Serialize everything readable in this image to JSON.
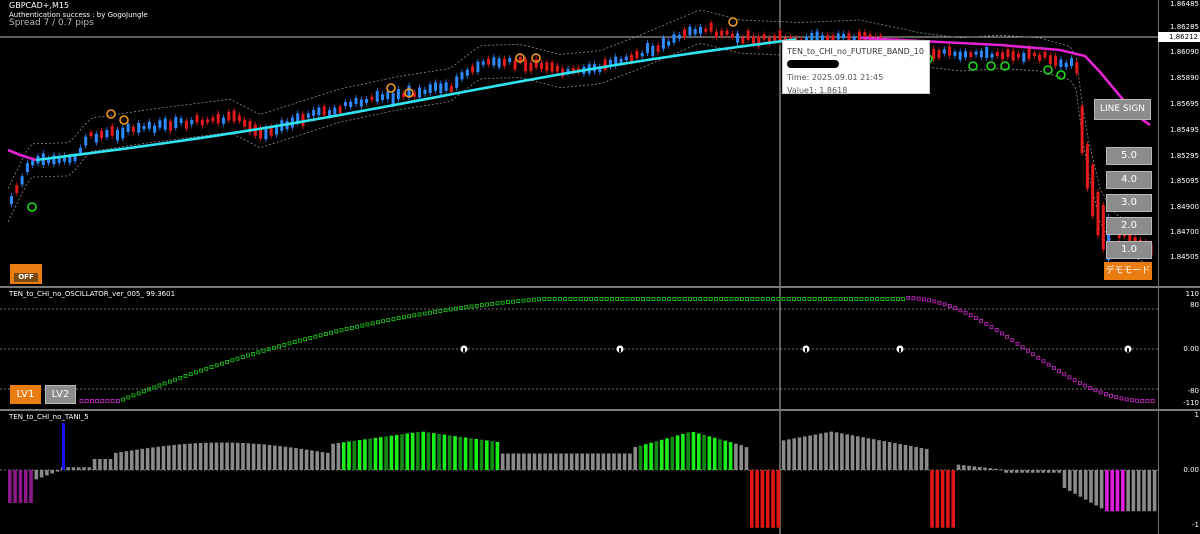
{
  "main": {
    "symbol": "GBPCAD+,M15",
    "auth_text": "Authentication success : by GogoJungle",
    "spread_text": "Spread 7 / 0.7 pips",
    "current_price": "1.86212",
    "price_ticks": [
      "1.86485",
      "1.86285",
      "1.86090",
      "1.85890",
      "1.85695",
      "1.85495",
      "1.85295",
      "1.85095",
      "1.84900",
      "1.84700",
      "1.84505"
    ],
    "tooltip": {
      "name": "TEN_to_CHI_no_FUTURE_BAND_10",
      "time": "Time: 2025.09.01 21:45",
      "value": "Value1: 1.8618"
    },
    "line_sign_label": "LINE SIGN",
    "level_buttons": [
      "5.0",
      "4.0",
      "3.0",
      "2.0",
      "1.0"
    ],
    "off_label": "OFF",
    "orange_label": "デモモード",
    "colors": {
      "bull": "#2f8bff",
      "bear": "#e31b1b",
      "fast_line": "#2ee5ef",
      "slow_line": "#e423d2",
      "band": "#8c8c8c"
    }
  },
  "oscillator": {
    "title": "TEN_to_CHI_no_OSCILLATOR_ver_005_ 99.3601",
    "ticks": [
      "110",
      "80",
      "0.00",
      "-80",
      "-110"
    ],
    "lv1_label": "LV1",
    "lv2_label": "LV2",
    "colors": {
      "up": "#1dd11d",
      "down": "#d32bd3"
    }
  },
  "histogram": {
    "title": "TEN_to_CHI_no_TANI_5",
    "ticks": [
      "1",
      "0.00",
      "-1"
    ],
    "colors": {
      "gray": "#8a8a8a",
      "bright_green": "#19f019",
      "dark_green": "#118a11",
      "red": "#e41515",
      "magenta": "#e21de2",
      "purple": "#8a1a8a",
      "blue": "#1515e8"
    }
  }
}
